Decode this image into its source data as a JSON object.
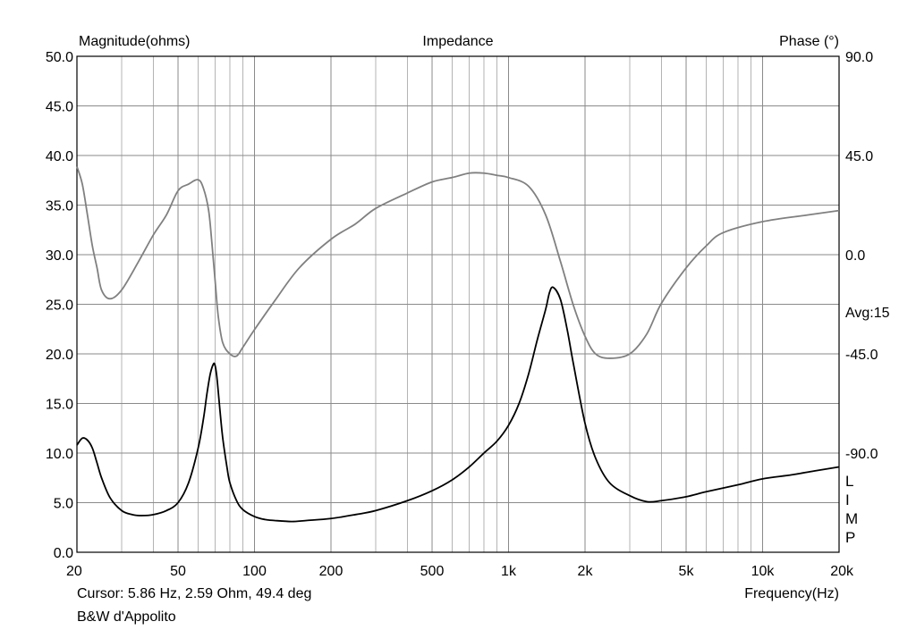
{
  "chart_data": {
    "type": "line",
    "title": "Impedance",
    "left_axis_label": "Magnitude(ohms)",
    "right_axis_label": "Phase (°)",
    "xlabel": "Frequency(Hz)",
    "x_scale": "log",
    "xlim": [
      20,
      20000
    ],
    "ylim_left": [
      0,
      50
    ],
    "ylim_right": [
      -135,
      90
    ],
    "grid": true,
    "x_ticks": [
      {
        "value": 20,
        "label": "20"
      },
      {
        "value": 50,
        "label": "50"
      },
      {
        "value": 100,
        "label": "100"
      },
      {
        "value": 200,
        "label": "200"
      },
      {
        "value": 500,
        "label": "500"
      },
      {
        "value": 1000,
        "label": "1k"
      },
      {
        "value": 2000,
        "label": "2k"
      },
      {
        "value": 5000,
        "label": "5k"
      },
      {
        "value": 10000,
        "label": "10k"
      },
      {
        "value": 20000,
        "label": "20k"
      }
    ],
    "y_ticks_left": [
      "0.0",
      "5.0",
      "10.0",
      "15.0",
      "20.0",
      "25.0",
      "30.0",
      "35.0",
      "40.0",
      "45.0",
      "50.0"
    ],
    "y_ticks_right": [
      {
        "value": 90,
        "label": "90.0"
      },
      {
        "value": 45,
        "label": "45.0"
      },
      {
        "value": 0,
        "label": "0.0"
      },
      {
        "value": -45,
        "label": "-45.0"
      },
      {
        "value": -90,
        "label": "-90.0"
      }
    ],
    "series": [
      {
        "name": "Magnitude",
        "axis": "left",
        "color": "#000000",
        "x": [
          20,
          21,
          22,
          23,
          24,
          25,
          27,
          30,
          33,
          36,
          40,
          45,
          50,
          55,
          60,
          63,
          65,
          67,
          69,
          70,
          71,
          72,
          73,
          75,
          78,
          80,
          85,
          90,
          100,
          110,
          120,
          140,
          160,
          200,
          250,
          300,
          400,
          500,
          600,
          700,
          800,
          900,
          1000,
          1100,
          1200,
          1300,
          1400,
          1450,
          1500,
          1600,
          1700,
          1800,
          2000,
          2200,
          2500,
          3000,
          3500,
          4000,
          5000,
          6000,
          8000,
          10000,
          13000,
          16000,
          20000
        ],
        "values": [
          10.8,
          11.5,
          11.3,
          10.5,
          9.0,
          7.5,
          5.5,
          4.2,
          3.8,
          3.7,
          3.8,
          4.2,
          5.0,
          7.0,
          10.5,
          13.5,
          16.0,
          18.0,
          19.0,
          18.8,
          17.8,
          16.2,
          14.5,
          11.5,
          8.5,
          7.0,
          5.2,
          4.3,
          3.6,
          3.3,
          3.2,
          3.1,
          3.2,
          3.4,
          3.8,
          4.2,
          5.2,
          6.2,
          7.3,
          8.6,
          10.0,
          11.2,
          12.8,
          15.0,
          18.0,
          21.5,
          24.5,
          26.2,
          26.7,
          25.5,
          22.5,
          19.0,
          13.0,
          9.5,
          7.0,
          5.7,
          5.1,
          5.2,
          5.6,
          6.1,
          6.8,
          7.4,
          7.8,
          8.2,
          8.6
        ]
      },
      {
        "name": "Phase",
        "axis": "right",
        "color": "#808080",
        "x": [
          20,
          21,
          22,
          23,
          24,
          25,
          27,
          30,
          35,
          40,
          45,
          50,
          55,
          60,
          63,
          66,
          68,
          70,
          72,
          75,
          80,
          85,
          90,
          100,
          120,
          150,
          200,
          250,
          300,
          400,
          500,
          600,
          700,
          800,
          900,
          1000,
          1200,
          1400,
          1600,
          1800,
          2000,
          2200,
          2500,
          3000,
          3500,
          4000,
          5000,
          6000,
          7000,
          10000,
          15000,
          20000
        ],
        "values": [
          40,
          32,
          18,
          4,
          -6,
          -16,
          -20,
          -16,
          -3,
          9,
          18,
          29,
          32,
          34,
          30,
          20,
          5,
          -12,
          -28,
          -40,
          -45,
          -46,
          -42,
          -34,
          -21,
          -6,
          7,
          14,
          21,
          28,
          33,
          35,
          37,
          37,
          36,
          35,
          31,
          18,
          -3,
          -23,
          -37,
          -45,
          -47,
          -45,
          -36,
          -22,
          -6,
          4,
          10,
          15,
          18,
          20
        ]
      }
    ]
  },
  "annotations": {
    "avg": "Avg:15",
    "lim_letters": [
      "L",
      "I",
      "M",
      "P"
    ],
    "cursor_readout": "Cursor: 5.86 Hz, 2.59 Ohm, 49.4 deg",
    "footer_title": "B&W d'Appolito"
  }
}
